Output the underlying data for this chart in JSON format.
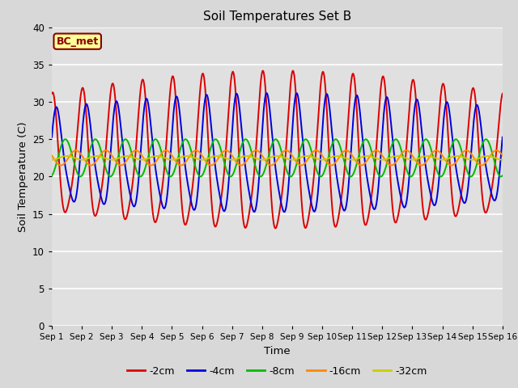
{
  "title": "Soil Temperatures Set B",
  "xlabel": "Time",
  "ylabel": "Soil Temperature (C)",
  "annotation": "BC_met",
  "xlim": [
    0,
    15
  ],
  "ylim": [
    0,
    40
  ],
  "yticks": [
    0,
    5,
    10,
    15,
    20,
    25,
    30,
    35,
    40
  ],
  "xtick_labels": [
    "Sep 1",
    "Sep 2",
    "Sep 3",
    "Sep 4",
    "Sep 5",
    "Sep 6",
    "Sep 7",
    "Sep 8",
    "Sep 9",
    "Sep 10",
    "Sep 11",
    "Sep 12",
    "Sep 13",
    "Sep 14",
    "Sep 15",
    "Sep 16"
  ],
  "series": [
    {
      "label": "-2cm",
      "color": "#dd0000",
      "lw": 1.4
    },
    {
      "label": "-4cm",
      "color": "#0000dd",
      "lw": 1.4
    },
    {
      "label": "-8cm",
      "color": "#00bb00",
      "lw": 1.4
    },
    {
      "label": "-16cm",
      "color": "#ff8800",
      "lw": 1.4
    },
    {
      "label": "-32cm",
      "color": "#cccc00",
      "lw": 1.4
    }
  ],
  "fig_bg": "#d8d8d8",
  "plot_bg": "#e0e0e0",
  "grid_color": "#ffffff",
  "annot_fg": "#8B0000",
  "annot_bg": "#ffff99",
  "annot_border": "#8B0000"
}
